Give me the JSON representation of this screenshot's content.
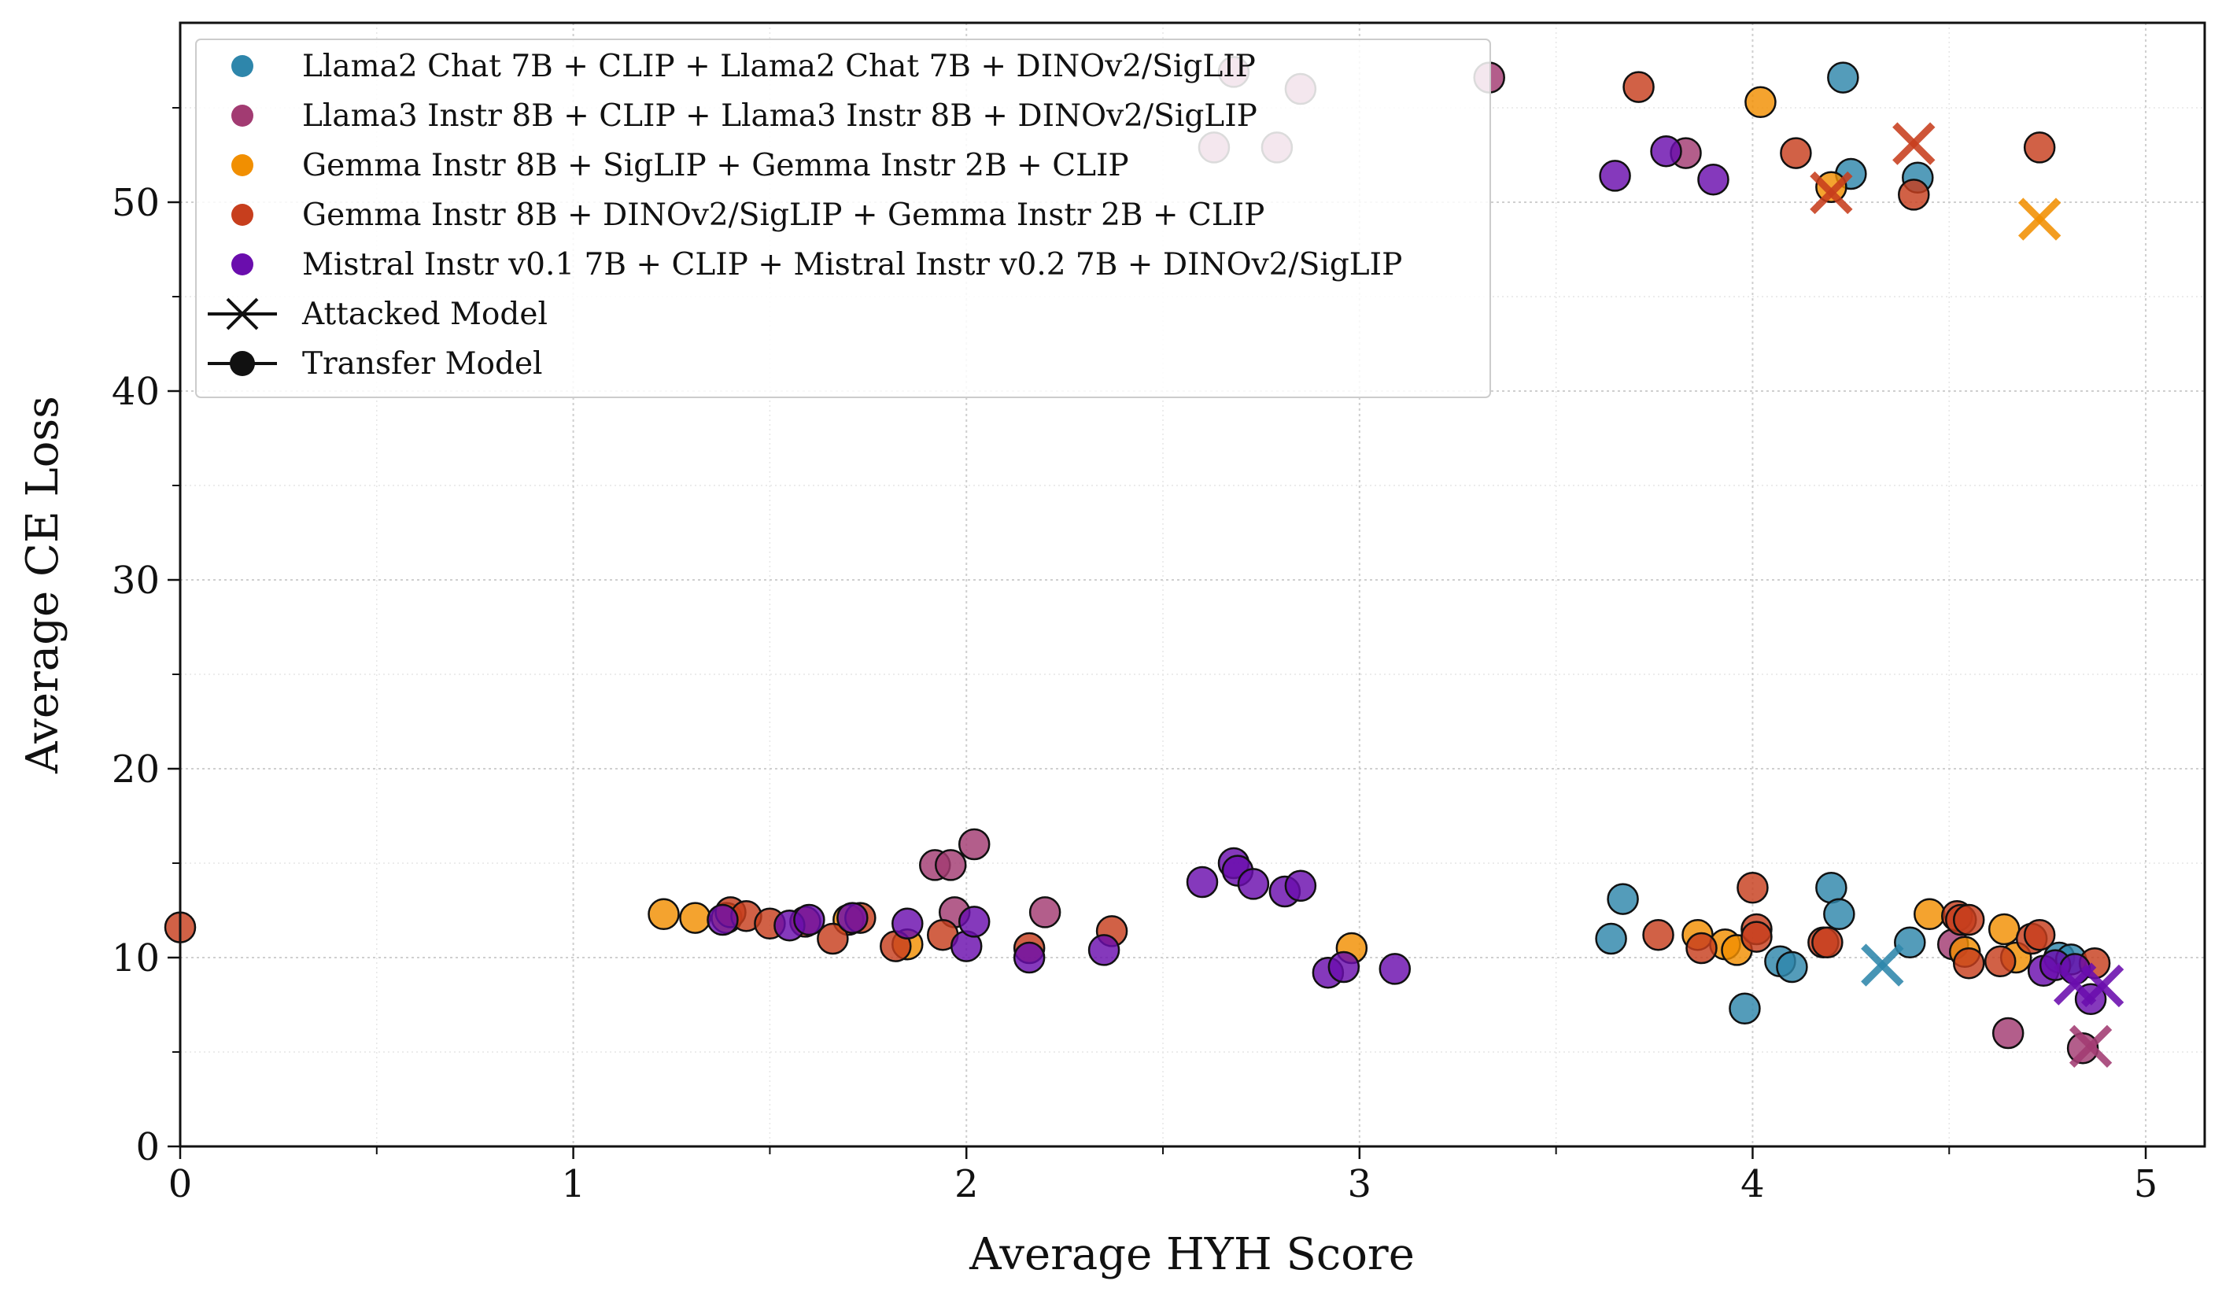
{
  "chart_data": {
    "type": "scatter",
    "title": "",
    "xlabel": "Average HYH Score",
    "ylabel": "Average CE Loss",
    "xlim": [
      0,
      5.15
    ],
    "ylim": [
      0,
      59.5
    ],
    "xticks": [
      0,
      1,
      2,
      3,
      4,
      5
    ],
    "xtick_labels": [
      "0",
      "1",
      "2",
      "3",
      "4",
      "5"
    ],
    "yticks": [
      0,
      10,
      20,
      30,
      40,
      50
    ],
    "ytick_labels": [
      "0",
      "10",
      "20",
      "30",
      "40",
      "50"
    ],
    "grid": true,
    "legend_position": "top-left",
    "marker_legend": [
      {
        "label": "Attacked Model",
        "marker": "x"
      },
      {
        "label": "Transfer Model",
        "marker": "o"
      }
    ],
    "series": [
      {
        "name": "Llama2 Chat 7B + CLIP + Llama2 Chat 7B + DINOv2/SigLIP",
        "color": "#2e86ab",
        "attacked": [
          [
            4.33,
            9.6
          ]
        ],
        "transfer": [
          [
            4.23,
            56.6
          ],
          [
            4.25,
            51.5
          ],
          [
            4.42,
            51.3
          ],
          [
            3.64,
            11.0
          ],
          [
            3.67,
            13.1
          ],
          [
            3.98,
            7.3
          ],
          [
            4.07,
            9.8
          ],
          [
            4.1,
            9.5
          ],
          [
            4.2,
            13.7
          ],
          [
            4.22,
            12.3
          ],
          [
            4.4,
            10.8
          ],
          [
            4.78,
            10.0
          ],
          [
            4.81,
            9.9
          ]
        ]
      },
      {
        "name": "Llama3 Instr 8B + CLIP + Llama3 Instr 8B + DINOv2/SigLIP",
        "color": "#a23b72",
        "attacked": [
          [
            4.86,
            5.3
          ]
        ],
        "transfer": [
          [
            2.63,
            52.9
          ],
          [
            2.68,
            56.9
          ],
          [
            2.79,
            52.9
          ],
          [
            2.85,
            56.0
          ],
          [
            3.33,
            56.6
          ],
          [
            3.83,
            52.6
          ],
          [
            1.92,
            14.9
          ],
          [
            1.96,
            14.9
          ],
          [
            2.02,
            16.0
          ],
          [
            1.97,
            12.4
          ],
          [
            2.2,
            12.4
          ],
          [
            4.51,
            10.7
          ],
          [
            4.65,
            6.0
          ],
          [
            4.84,
            5.2
          ]
        ]
      },
      {
        "name": "Gemma Instr 8B + SigLIP + Gemma Instr 2B + CLIP",
        "color": "#f18f01",
        "attacked": [
          [
            4.73,
            49.1
          ]
        ],
        "transfer": [
          [
            4.02,
            55.3
          ],
          [
            4.2,
            50.8
          ],
          [
            1.23,
            12.3
          ],
          [
            1.31,
            12.1
          ],
          [
            1.39,
            12.1
          ],
          [
            1.7,
            12.0
          ],
          [
            1.85,
            10.7
          ],
          [
            2.98,
            10.5
          ],
          [
            3.86,
            11.2
          ],
          [
            3.93,
            10.7
          ],
          [
            3.96,
            10.4
          ],
          [
            4.45,
            12.3
          ],
          [
            4.54,
            10.3
          ],
          [
            4.64,
            11.5
          ],
          [
            4.67,
            10.0
          ]
        ]
      },
      {
        "name": "Gemma Instr 8B + DINOv2/SigLIP + Gemma Instr 2B + CLIP",
        "color": "#c73e1d",
        "attacked": [
          [
            4.2,
            50.5
          ],
          [
            4.41,
            53.1
          ]
        ],
        "transfer": [
          [
            3.71,
            56.1
          ],
          [
            4.11,
            52.6
          ],
          [
            4.41,
            50.4
          ],
          [
            4.73,
            52.9
          ],
          [
            0.0,
            11.6
          ],
          [
            1.4,
            12.4
          ],
          [
            1.44,
            12.2
          ],
          [
            1.5,
            11.8
          ],
          [
            1.59,
            11.9
          ],
          [
            1.66,
            11.0
          ],
          [
            1.73,
            12.1
          ],
          [
            1.82,
            10.6
          ],
          [
            1.94,
            11.2
          ],
          [
            2.16,
            10.5
          ],
          [
            2.37,
            11.4
          ],
          [
            3.76,
            11.2
          ],
          [
            3.87,
            10.5
          ],
          [
            4.0,
            13.7
          ],
          [
            4.01,
            11.5
          ],
          [
            4.01,
            11.1
          ],
          [
            4.18,
            10.8
          ],
          [
            4.19,
            10.8
          ],
          [
            4.52,
            12.2
          ],
          [
            4.53,
            12.0
          ],
          [
            4.55,
            12.0
          ],
          [
            4.55,
            9.7
          ],
          [
            4.63,
            9.8
          ],
          [
            4.71,
            11.0
          ],
          [
            4.73,
            11.2
          ],
          [
            4.87,
            9.7
          ]
        ]
      },
      {
        "name": "Mistral Instr v0.1 7B + CLIP + Mistral Instr v0.2 7B + DINOv2/SigLIP",
        "color": "#6a0dad",
        "attacked": [
          [
            4.82,
            8.6
          ],
          [
            4.89,
            8.5
          ]
        ],
        "transfer": [
          [
            3.65,
            51.4
          ],
          [
            3.78,
            52.7
          ],
          [
            3.9,
            51.2
          ],
          [
            1.38,
            12.0
          ],
          [
            1.55,
            11.7
          ],
          [
            1.6,
            12.0
          ],
          [
            1.71,
            12.1
          ],
          [
            1.85,
            11.8
          ],
          [
            2.0,
            10.6
          ],
          [
            2.02,
            11.9
          ],
          [
            2.16,
            10.0
          ],
          [
            2.35,
            10.4
          ],
          [
            2.6,
            14.0
          ],
          [
            2.68,
            15.0
          ],
          [
            2.69,
            14.6
          ],
          [
            2.73,
            13.9
          ],
          [
            2.81,
            13.5
          ],
          [
            2.85,
            13.8
          ],
          [
            2.92,
            9.2
          ],
          [
            2.96,
            9.5
          ],
          [
            3.09,
            9.4
          ],
          [
            4.74,
            9.3
          ],
          [
            4.77,
            9.6
          ],
          [
            4.82,
            9.4
          ],
          [
            4.86,
            7.8
          ]
        ]
      }
    ]
  }
}
